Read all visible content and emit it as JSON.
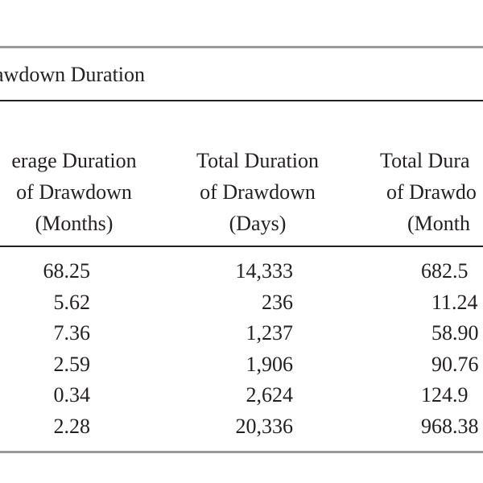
{
  "table": {
    "caption": "awdown Duration",
    "headers": [
      [
        "erage Duration",
        "of Drawdown",
        "(Months)"
      ],
      [
        "Total Duration",
        "of Drawdown",
        "(Days)"
      ],
      [
        "Total Dura",
        "of Drawdo",
        "(Month"
      ]
    ],
    "rows": [
      [
        "68.25",
        "14,333",
        "682.5"
      ],
      [
        "5.62",
        "236",
        "11.24"
      ],
      [
        "7.36",
        "1,237",
        "58.90"
      ],
      [
        "2.59",
        "1,906",
        "90.76"
      ],
      [
        "0.34",
        "2,624",
        "124.9"
      ],
      [
        "2.28",
        "20,336",
        "968.38"
      ]
    ]
  }
}
